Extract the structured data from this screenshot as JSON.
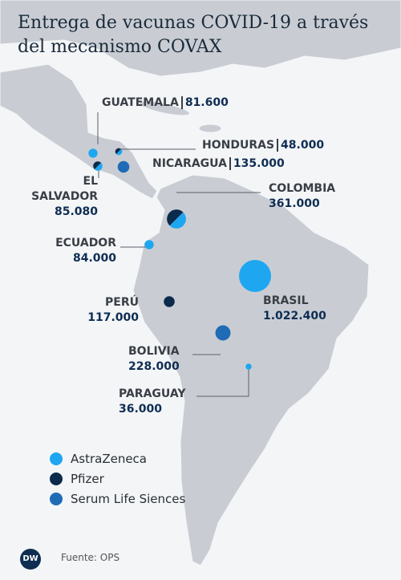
{
  "header": {
    "title": "Entrega de vacunas COVID-19 a través del mecanismo COVAX"
  },
  "legend": [
    {
      "name": "AstraZeneca",
      "color": "#1ea7f0"
    },
    {
      "name": "Pfizer",
      "color": "#0b2a4c"
    },
    {
      "name": "Serum Life Siences",
      "color": "#1f6bb5"
    }
  ],
  "countries": [
    {
      "name": "GUATEMALA",
      "value": 81600,
      "value_label": "81.600",
      "colors": [
        "#1ea7f0"
      ]
    },
    {
      "name": "HONDURAS",
      "value": 48000,
      "value_label": "48.000",
      "colors": [
        "#1ea7f0",
        "#0b2a4c"
      ]
    },
    {
      "name": "NICARAGUA",
      "value": 135000,
      "value_label": "135.000",
      "colors": [
        "#1f6bb5"
      ]
    },
    {
      "name": "EL SALVADOR",
      "value": 85080,
      "value_label": "85.080",
      "colors": [
        "#1ea7f0",
        "#0b2a4c"
      ]
    },
    {
      "name": "COLOMBIA",
      "value": 361000,
      "value_label": "361.000",
      "colors": [
        "#1ea7f0",
        "#0b2a4c"
      ]
    },
    {
      "name": "ECUADOR",
      "value": 84000,
      "value_label": "84.000",
      "colors": [
        "#1ea7f0"
      ]
    },
    {
      "name": "PERÚ",
      "value": 117000,
      "value_label": "117.000",
      "colors": [
        "#0b2a4c"
      ]
    },
    {
      "name": "BRASIL",
      "value": 1022400,
      "value_label": "1.022.400",
      "colors": [
        "#1ea7f0"
      ]
    },
    {
      "name": "BOLIVIA",
      "value": 228000,
      "value_label": "228.000",
      "colors": [
        "#1f6bb5"
      ]
    },
    {
      "name": "PARAGUAY",
      "value": 36000,
      "value_label": "36.000",
      "colors": [
        "#1ea7f0"
      ]
    }
  ],
  "footer": {
    "logo": "DW",
    "source": "Fuente: OPS"
  }
}
